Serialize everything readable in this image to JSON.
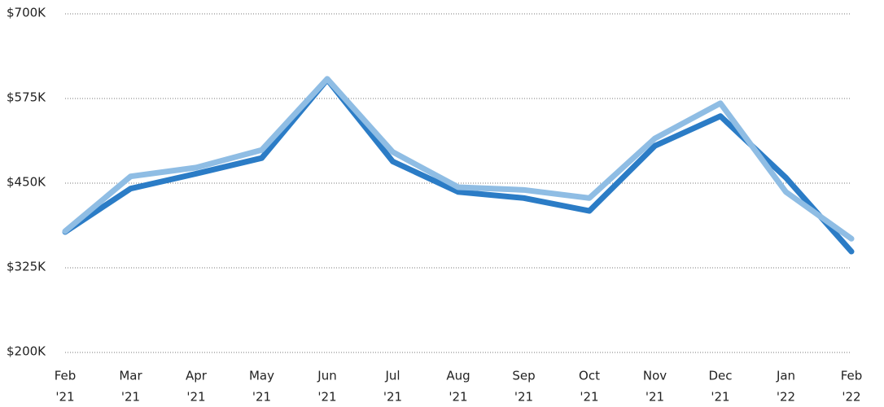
{
  "chart_data": {
    "type": "line",
    "categories": [
      [
        "Feb",
        "'21"
      ],
      [
        "Mar",
        "'21"
      ],
      [
        "Apr",
        "'21"
      ],
      [
        "May",
        "'21"
      ],
      [
        "Jun",
        "'21"
      ],
      [
        "Jul",
        "'21"
      ],
      [
        "Aug",
        "'21"
      ],
      [
        "Sep",
        "'21"
      ],
      [
        "Oct",
        "'21"
      ],
      [
        "Nov",
        "'21"
      ],
      [
        "Dec",
        "'21"
      ],
      [
        "Jan",
        "'22"
      ],
      [
        "Feb",
        "'22"
      ]
    ],
    "series": [
      {
        "color": "#2b7cc6",
        "values": [
          378000,
          442000,
          464000,
          487000,
          603000,
          482000,
          437000,
          428000,
          409000,
          505000,
          549000,
          458000,
          349000
        ]
      },
      {
        "color": "#8fbde4",
        "values": [
          379000,
          460000,
          473000,
          499000,
          604000,
          496000,
          444000,
          440000,
          428000,
          516000,
          568000,
          437000,
          368000
        ]
      }
    ],
    "ylim": [
      200000,
      700000
    ],
    "yticks": [
      {
        "value": 200000,
        "label": "$200K"
      },
      {
        "value": 325000,
        "label": "$325K"
      },
      {
        "value": 450000,
        "label": "$450K"
      },
      {
        "value": 575000,
        "label": "$575K"
      },
      {
        "value": 700000,
        "label": "$700K"
      }
    ],
    "grid": true
  }
}
